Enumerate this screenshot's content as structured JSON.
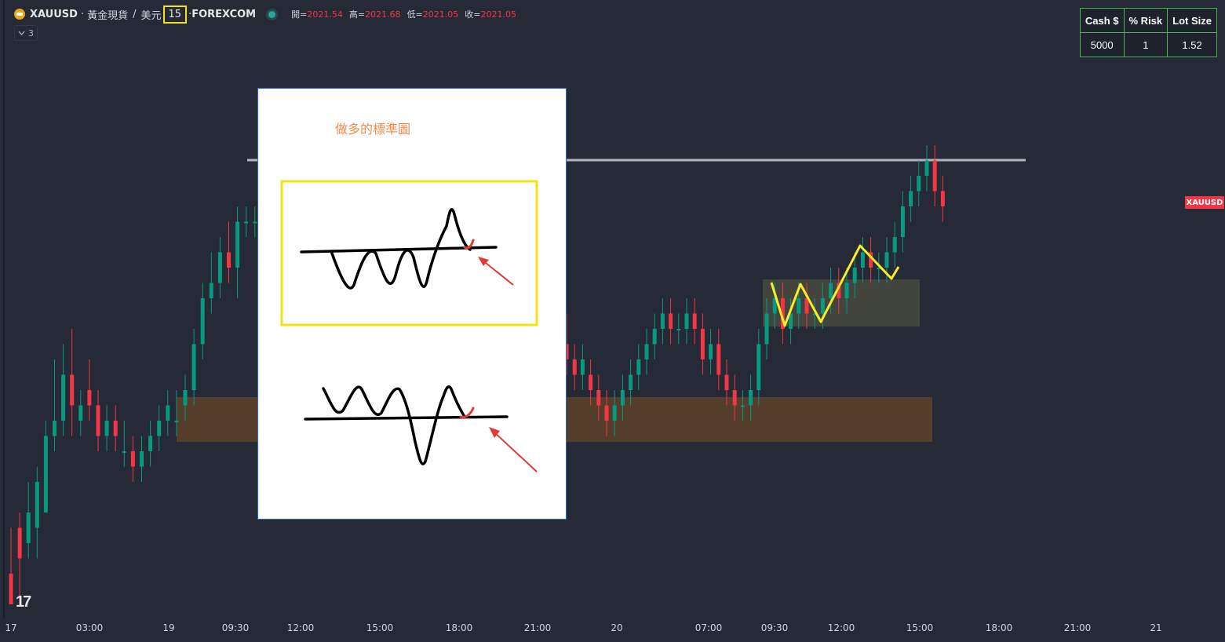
{
  "header": {
    "symbol": "XAUUSD",
    "sep": "·",
    "name": "黃金現貨",
    "slash": "/",
    "currency": "美元",
    "timeframe": "15",
    "exchange": "FOREXCOM",
    "ohlc": {
      "open_label": "開=",
      "open": "2021.54",
      "high_label": "高=",
      "high": "2021.68",
      "low_label": "低=",
      "low": "2021.05",
      "close_label": "收=",
      "close": "2021.05"
    }
  },
  "indicators_toggle": {
    "count": "3"
  },
  "risk_table": {
    "headers": [
      "Cash $",
      "% Risk",
      "Lot Size"
    ],
    "values": [
      "5000",
      "1",
      "1.52"
    ]
  },
  "price_label": "XAUUSD",
  "overlay": {
    "title": "做多的標準圖"
  },
  "time_axis": [
    "17",
    "03:00",
    "19",
    "09:30",
    "12:00",
    "15:00",
    "18:00",
    "21:00",
    "20",
    "07:00",
    "09:30",
    "12:00",
    "15:00",
    "18:00",
    "21:00",
    "21"
  ],
  "chart_data": {
    "type": "candlestick",
    "title": "",
    "candles_left": [
      [
        2,
        5,
        1,
        0
      ],
      [
        5,
        6,
        0,
        3
      ],
      [
        4,
        8,
        3,
        6
      ],
      [
        5,
        9,
        3,
        8
      ],
      [
        6,
        12,
        6,
        11
      ],
      [
        11,
        16,
        10,
        12
      ],
      [
        12,
        17,
        11,
        15
      ],
      [
        15,
        18,
        11,
        13
      ],
      [
        12,
        14,
        11,
        13
      ],
      [
        14,
        16,
        12,
        13
      ],
      [
        13,
        14,
        10,
        11
      ],
      [
        11,
        13,
        10,
        12
      ],
      [
        12,
        13,
        10,
        11
      ],
      [
        10,
        12,
        9,
        10
      ],
      [
        10,
        11,
        8,
        9
      ],
      [
        9,
        11,
        8,
        10
      ],
      [
        10,
        12,
        9,
        11
      ],
      [
        11,
        13,
        10,
        12
      ],
      [
        12,
        14,
        11,
        13
      ],
      [
        12,
        14,
        11,
        12
      ],
      [
        13,
        15,
        12,
        14
      ],
      [
        14,
        18,
        13,
        17
      ],
      [
        17,
        21,
        16,
        20
      ],
      [
        20,
        23,
        19,
        21
      ],
      [
        21,
        24,
        20,
        23
      ],
      [
        23,
        25,
        21,
        22
      ],
      [
        22,
        26,
        20,
        25
      ],
      [
        25,
        26,
        24,
        25
      ],
      [
        25,
        26,
        24,
        25
      ]
    ],
    "candles_right": [
      [
        17,
        19,
        15,
        16
      ],
      [
        16,
        17,
        14,
        15
      ],
      [
        15,
        17,
        14,
        16
      ],
      [
        15,
        16,
        13,
        14
      ],
      [
        14,
        15,
        12,
        13
      ],
      [
        13,
        14,
        11,
        12
      ],
      [
        12,
        14,
        11,
        13
      ],
      [
        13,
        15,
        12,
        14
      ],
      [
        14,
        16,
        13,
        15
      ],
      [
        15,
        17,
        14,
        16
      ],
      [
        16,
        18,
        15,
        17
      ],
      [
        17,
        19,
        16,
        18
      ],
      [
        18,
        20,
        17,
        19
      ],
      [
        19,
        20,
        17,
        18
      ],
      [
        18,
        19,
        17,
        18
      ],
      [
        18,
        20,
        17,
        19
      ],
      [
        19,
        20,
        17,
        18
      ],
      [
        18,
        19,
        15,
        16
      ],
      [
        16,
        18,
        15,
        17
      ],
      [
        17,
        18,
        14,
        15
      ],
      [
        15,
        16,
        13,
        14
      ],
      [
        14,
        15,
        12,
        13
      ],
      [
        13,
        14,
        12,
        13
      ],
      [
        13,
        15,
        12,
        14
      ],
      [
        14,
        18,
        13,
        17
      ],
      [
        17,
        20,
        16,
        19
      ],
      [
        19,
        21,
        18,
        20
      ],
      [
        20,
        21,
        17,
        18
      ],
      [
        18,
        20,
        17,
        19
      ],
      [
        19,
        21,
        18,
        20
      ],
      [
        20,
        21,
        18,
        19
      ],
      [
        19,
        20,
        18,
        19
      ],
      [
        19,
        21,
        18,
        20
      ],
      [
        20,
        22,
        19,
        21
      ],
      [
        21,
        22,
        19,
        20
      ],
      [
        20,
        22,
        19,
        21
      ],
      [
        21,
        23,
        20,
        22
      ],
      [
        22,
        24,
        21,
        23
      ],
      [
        23,
        24,
        21,
        22
      ],
      [
        22,
        23,
        21,
        22
      ],
      [
        22,
        24,
        21,
        23
      ],
      [
        23,
        25,
        22,
        24
      ],
      [
        24,
        27,
        23,
        26
      ],
      [
        26,
        28,
        25,
        27
      ],
      [
        27,
        29,
        26,
        28
      ],
      [
        28,
        30,
        27,
        29
      ],
      [
        29,
        30,
        26,
        27
      ],
      [
        27,
        28,
        25,
        26
      ]
    ]
  }
}
